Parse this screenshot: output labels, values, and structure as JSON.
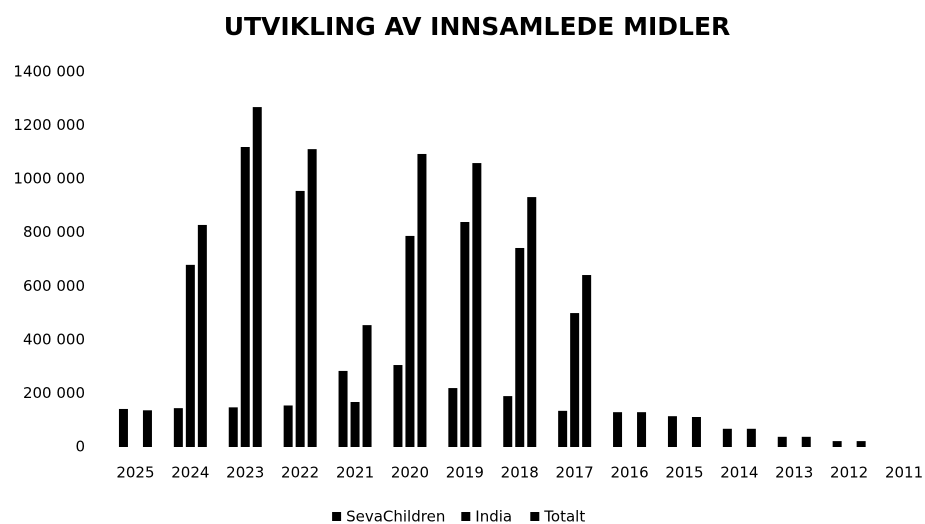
{
  "chart_data": {
    "type": "bar",
    "title": "UTVIKLING AV INNSAMLEDE MIDLER",
    "categories": [
      "2025",
      "2024",
      "2023",
      "2022",
      "2021",
      "2020",
      "2019",
      "2018",
      "2017",
      "2016",
      "2015",
      "2014",
      "2013",
      "2012",
      "2011"
    ],
    "series": [
      {
        "name": "SevaChildren",
        "color": "#000000",
        "values": [
          142000,
          145000,
          148000,
          155000,
          284000,
          306000,
          220000,
          190000,
          135000,
          130000,
          115000,
          68000,
          38000,
          22000,
          null
        ]
      },
      {
        "name": "India",
        "color": "#000000",
        "values": [
          null,
          680000,
          1120000,
          956000,
          168000,
          788000,
          840000,
          743000,
          500000,
          null,
          null,
          null,
          null,
          null,
          null
        ]
      },
      {
        "name": "Totalt",
        "color": "#000000",
        "values": [
          137000,
          829000,
          1269000,
          1112000,
          455000,
          1094000,
          1060000,
          933000,
          642000,
          130000,
          112000,
          68000,
          38000,
          22000,
          null
        ]
      }
    ],
    "ylim": [
      0,
      1400000
    ],
    "yticks": [
      0,
      {
        "value": 200000,
        "label": "200 000"
      },
      {
        "value": 400000,
        "label": "400 000"
      },
      {
        "value": 600000,
        "label": "600 000"
      },
      {
        "value": 800000,
        "label": "800 000"
      },
      {
        "value": 1000000,
        "label": "1000 000"
      },
      {
        "value": 1200000,
        "label": "1200 000"
      },
      {
        "value": 1400000,
        "label": "1400 000"
      }
    ],
    "grid": false,
    "legend": "bottom"
  }
}
